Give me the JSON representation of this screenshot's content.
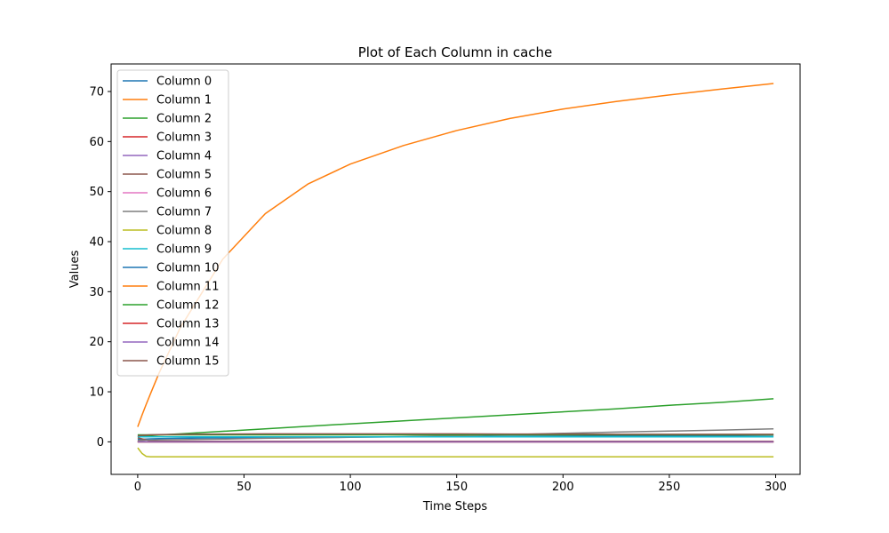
{
  "chart_data": {
    "type": "line",
    "title": "Plot of Each Column in cache",
    "xlabel": "Time Steps",
    "ylabel": "Values",
    "xlim": [
      -12.5,
      311.5
    ],
    "ylim": [
      -6.5,
      75.5
    ],
    "xticks": [
      0,
      50,
      100,
      150,
      200,
      250,
      300
    ],
    "yticks": [
      0,
      10,
      20,
      30,
      40,
      50,
      60,
      70
    ],
    "grid": false,
    "legend_position": "upper left",
    "x": [
      0,
      2,
      4,
      6,
      10,
      20,
      40,
      60,
      80,
      100,
      125,
      150,
      175,
      200,
      225,
      250,
      275,
      299
    ],
    "series": [
      {
        "name": "Column 0",
        "color": "#1f77b4",
        "values": [
          0.5,
          0.5,
          0.55,
          0.6,
          0.65,
          0.7,
          0.8,
          0.85,
          0.9,
          0.95,
          1.0,
          1.05,
          1.1,
          1.15,
          1.2,
          1.2,
          1.25,
          1.3
        ]
      },
      {
        "name": "Column 1",
        "color": "#ff7f0e",
        "values": [
          3.0,
          5.3,
          7.5,
          9.6,
          13.7,
          22.8,
          36.5,
          45.6,
          51.5,
          55.5,
          59.2,
          62.2,
          64.6,
          66.5,
          68.0,
          69.3,
          70.5,
          71.6
        ]
      },
      {
        "name": "Column 2",
        "color": "#2ca02c",
        "values": [
          1.0,
          1.1,
          1.2,
          1.25,
          1.35,
          1.6,
          2.1,
          2.6,
          3.1,
          3.6,
          4.2,
          4.8,
          5.4,
          6.0,
          6.6,
          7.3,
          7.9,
          8.6
        ]
      },
      {
        "name": "Column 3",
        "color": "#d62728",
        "values": [
          0.0,
          0.0,
          0.0,
          0.0,
          0.0,
          0.0,
          0.0,
          0.0,
          0.0,
          0.0,
          0.0,
          0.0,
          0.0,
          0.0,
          0.0,
          0.0,
          0.0,
          0.0
        ]
      },
      {
        "name": "Column 4",
        "color": "#9467bd",
        "values": [
          0.2,
          0.1,
          0.05,
          0.0,
          0.0,
          0.0,
          0.0,
          0.0,
          0.0,
          0.0,
          0.0,
          0.0,
          0.0,
          0.0,
          0.0,
          0.0,
          0.0,
          0.0
        ]
      },
      {
        "name": "Column 5",
        "color": "#8c564b",
        "values": [
          0.8,
          0.6,
          0.4,
          0.2,
          0.1,
          0.1,
          0.1,
          0.1,
          0.1,
          0.1,
          0.1,
          0.1,
          0.1,
          0.1,
          0.1,
          0.1,
          0.1,
          0.1
        ]
      },
      {
        "name": "Column 6",
        "color": "#e377c2",
        "values": [
          0.0,
          0.0,
          0.0,
          0.0,
          0.0,
          0.0,
          0.0,
          0.0,
          0.0,
          0.0,
          0.0,
          0.0,
          0.0,
          0.0,
          0.0,
          0.0,
          0.0,
          0.0
        ]
      },
      {
        "name": "Column 7",
        "color": "#7f7f7f",
        "values": [
          0.3,
          0.3,
          0.35,
          0.35,
          0.4,
          0.45,
          0.55,
          0.7,
          0.8,
          0.9,
          1.05,
          1.25,
          1.45,
          1.7,
          1.95,
          2.15,
          2.35,
          2.6
        ]
      },
      {
        "name": "Column 8",
        "color": "#bcbd22",
        "values": [
          -1.2,
          -2.3,
          -2.9,
          -3.0,
          -3.0,
          -3.0,
          -3.0,
          -3.0,
          -3.0,
          -3.0,
          -3.0,
          -3.0,
          -3.0,
          -3.0,
          -3.0,
          -3.0,
          -3.0,
          -3.0
        ]
      },
      {
        "name": "Column 9",
        "color": "#17becf",
        "values": [
          1.0,
          1.0,
          1.0,
          1.0,
          1.0,
          1.0,
          1.0,
          1.0,
          1.0,
          1.0,
          1.0,
          1.0,
          1.0,
          1.0,
          1.0,
          1.0,
          1.0,
          1.0
        ]
      },
      {
        "name": "Column 10",
        "color": "#1f77b4",
        "values": [
          0.0,
          0.0,
          0.0,
          0.0,
          0.0,
          0.0,
          0.0,
          0.0,
          0.0,
          0.0,
          0.0,
          0.0,
          0.0,
          0.0,
          0.0,
          0.0,
          0.0,
          0.0
        ]
      },
      {
        "name": "Column 11",
        "color": "#ff7f0e",
        "values": [
          0.0,
          0.0,
          0.0,
          0.0,
          0.0,
          0.0,
          0.0,
          0.0,
          0.0,
          0.0,
          0.0,
          0.0,
          0.0,
          0.0,
          0.0,
          0.0,
          0.0,
          0.0
        ]
      },
      {
        "name": "Column 12",
        "color": "#2ca02c",
        "values": [
          1.4,
          1.4,
          1.4,
          1.4,
          1.4,
          1.4,
          1.4,
          1.4,
          1.4,
          1.4,
          1.4,
          1.4,
          1.4,
          1.4,
          1.4,
          1.4,
          1.4,
          1.4
        ]
      },
      {
        "name": "Column 13",
        "color": "#d62728",
        "values": [
          0.0,
          0.0,
          0.0,
          0.0,
          0.0,
          0.0,
          0.0,
          0.0,
          0.0,
          0.0,
          0.0,
          0.0,
          0.0,
          0.0,
          0.0,
          0.0,
          0.0,
          0.0
        ]
      },
      {
        "name": "Column 14",
        "color": "#9467bd",
        "values": [
          0.0,
          0.0,
          0.0,
          0.0,
          0.0,
          0.0,
          0.0,
          0.0,
          0.0,
          0.0,
          0.0,
          0.0,
          0.0,
          0.0,
          0.0,
          0.0,
          0.0,
          0.0
        ]
      },
      {
        "name": "Column 15",
        "color": "#8c564b",
        "values": [
          1.2,
          1.3,
          1.35,
          1.4,
          1.45,
          1.5,
          1.55,
          1.6,
          1.6,
          1.6,
          1.6,
          1.6,
          1.55,
          1.55,
          1.5,
          1.5,
          1.5,
          1.5
        ]
      }
    ]
  }
}
